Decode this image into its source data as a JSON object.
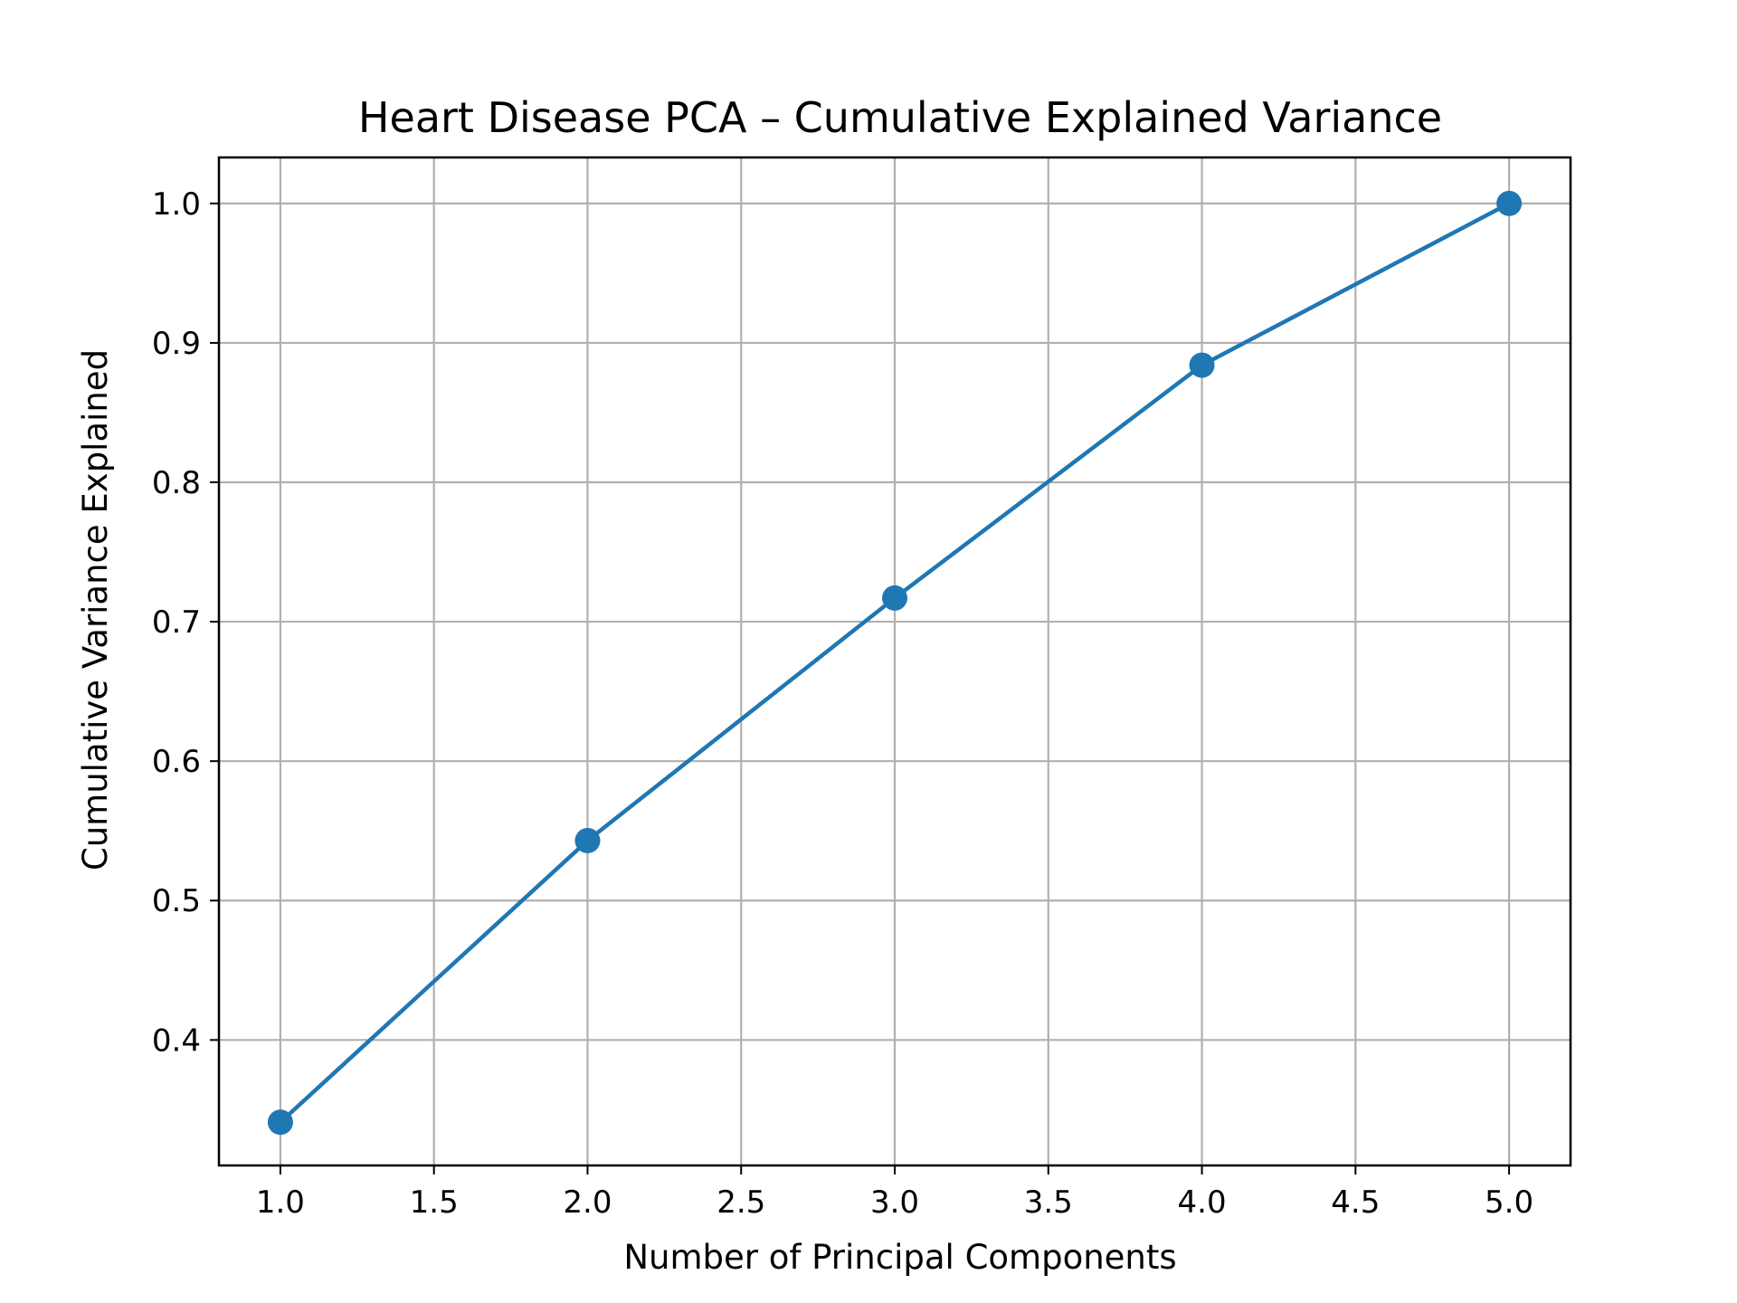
{
  "chart_data": {
    "type": "line",
    "title": "Heart Disease PCA – Cumulative Explained Variance",
    "xlabel": "Number of Principal Components",
    "ylabel": "Cumulative Variance Explained",
    "x": [
      1,
      2,
      3,
      4,
      5
    ],
    "series": [
      {
        "values": [
          0.341,
          0.543,
          0.717,
          0.884,
          1.0
        ],
        "color": "#1f77b4",
        "marker": "circle"
      }
    ],
    "xlim": [
      0.8,
      5.2
    ],
    "ylim": [
      0.31,
      1.033
    ],
    "x_ticks": [
      1.0,
      1.5,
      2.0,
      2.5,
      3.0,
      3.5,
      4.0,
      4.5,
      5.0
    ],
    "y_ticks": [
      0.4,
      0.5,
      0.6,
      0.7,
      0.8,
      0.9,
      1.0
    ],
    "x_tick_labels": [
      "1.0",
      "1.5",
      "2.0",
      "2.5",
      "3.0",
      "3.5",
      "4.0",
      "4.5",
      "5.0"
    ],
    "y_tick_labels": [
      "0.4",
      "0.5",
      "0.6",
      "0.7",
      "0.8",
      "0.9",
      "1.0"
    ],
    "grid": true,
    "grid_color": "#b0b0b0"
  }
}
